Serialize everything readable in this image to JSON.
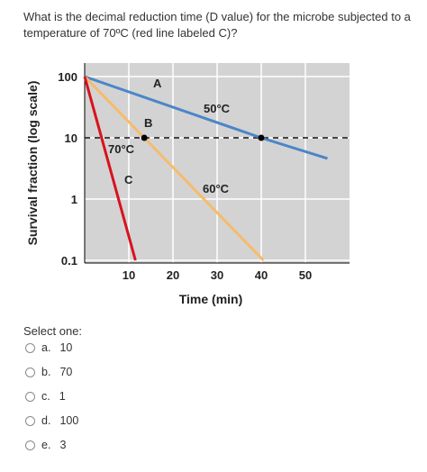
{
  "question": {
    "text": "What is the decimal reduction time (D value) for the microbe subjected to a temperature of 70ºC (red line labeled C)?"
  },
  "chart_data": {
    "type": "line",
    "ylabel": "Survival fraction (log scale)",
    "xlabel": "Time (min)",
    "x_ticks": [
      "10",
      "20",
      "30",
      "40",
      "50"
    ],
    "y_ticks": [
      "100",
      "10",
      "1",
      "0.1"
    ],
    "xlim": [
      0,
      55
    ],
    "ylim_log": [
      0.1,
      100
    ],
    "grid": true,
    "series": [
      {
        "name": "A",
        "temp_label": "50°C",
        "color": "#4a86c8",
        "x": [
          0,
          40,
          55
        ],
        "y": [
          100,
          10,
          4.6
        ]
      },
      {
        "name": "B",
        "temp_label": "60°C",
        "color": "#f7bb6a",
        "x": [
          0,
          13.5,
          40.5
        ],
        "y": [
          100,
          10,
          0.1
        ]
      },
      {
        "name": "C",
        "temp_label": "70°C",
        "color": "#d8121e",
        "x": [
          0,
          11.5
        ],
        "y": [
          100,
          0.1
        ]
      }
    ],
    "reference_line": {
      "y": 10,
      "style": "dashed"
    },
    "marked_points": [
      {
        "x": 40,
        "y": 10
      },
      {
        "x": 13.5,
        "y": 10
      }
    ]
  },
  "select_one": "Select one:",
  "options": [
    {
      "letter": "a.",
      "value": "10"
    },
    {
      "letter": "b.",
      "value": "70"
    },
    {
      "letter": "c.",
      "value": "1"
    },
    {
      "letter": "d.",
      "value": "100"
    },
    {
      "letter": "e.",
      "value": "3"
    }
  ],
  "colors": {
    "plot_bg": "#d3d3d3",
    "grid": "#ffffff",
    "text": "#333333"
  }
}
